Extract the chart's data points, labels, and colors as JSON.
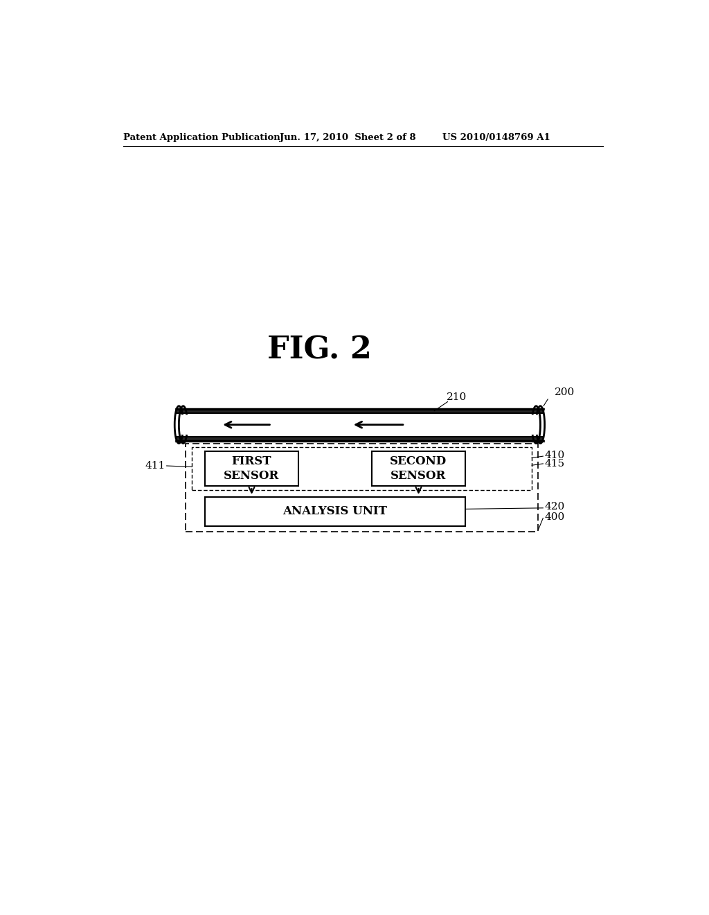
{
  "bg_color": "#ffffff",
  "header_left": "Patent Application Publication",
  "header_mid": "Jun. 17, 2010  Sheet 2 of 8",
  "header_right": "US 2010/0148769 A1",
  "fig_title": "FIG. 2",
  "label_200": "200",
  "label_210": "210",
  "label_400": "400",
  "label_410": "410",
  "label_411": "411",
  "label_415": "415",
  "label_420": "420",
  "text_first_sensor": "FIRST\nSENSOR",
  "text_second_sensor": "SECOND\nSENSOR",
  "text_analysis_unit": "ANALYSIS UNIT"
}
